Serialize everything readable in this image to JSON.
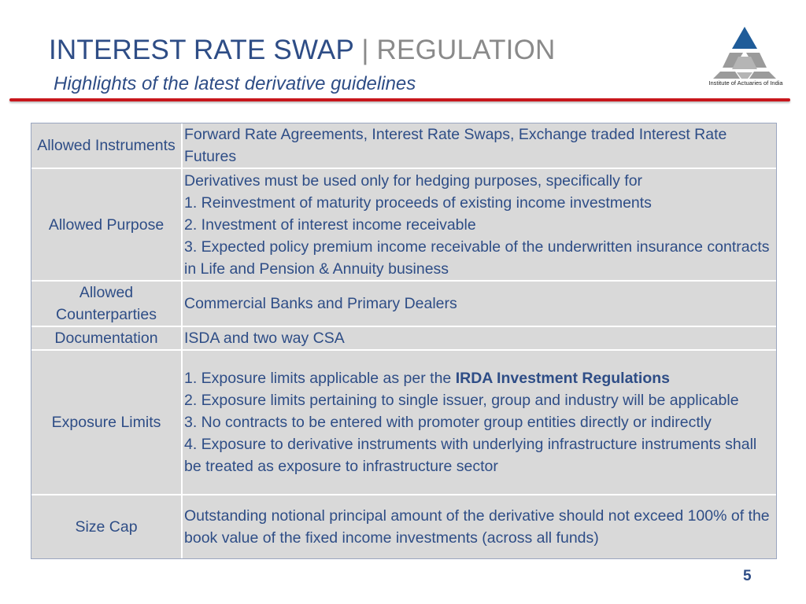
{
  "header": {
    "title_main": "INTEREST RATE SWAP",
    "title_sep": "|",
    "title_sub": "REGULATION",
    "subtitle": "Highlights of the latest derivative guidelines"
  },
  "logo": {
    "caption": "Institute of Actuaries of India",
    "icon": "iai-triangle-logo-icon"
  },
  "table": {
    "rows": [
      {
        "label": "Allowed Instruments",
        "lines": [
          "Forward Rate Agreements, Interest Rate Swaps, Exchange traded Interest Rate Futures"
        ]
      },
      {
        "label": "Allowed Purpose",
        "lines": [
          "Derivatives must be used only for hedging purposes, specifically for",
          "1. Reinvestment of maturity proceeds of existing income investments",
          "2. Investment of interest income receivable",
          "3. Expected policy premium income receivable of the underwritten insurance contracts in Life and Pension & Annuity business"
        ]
      },
      {
        "label": "Allowed Counterparties",
        "lines": [
          "Commercial Banks and Primary Dealers"
        ]
      },
      {
        "label": "Documentation",
        "lines": [
          "ISDA and two way CSA"
        ]
      },
      {
        "label": "Exposure Limits",
        "line1_prefix": "1. Exposure limits applicable as per the ",
        "line1_bold": "IRDA Investment Regulations",
        "lines": [
          "2. Exposure limits pertaining to single issuer, group and industry will be applicable",
          "3. No contracts to be entered with promoter group entities directly or indirectly",
          "4. Exposure to derivative instruments with underlying infrastructure instruments shall be treated as exposure to infrastructure sector"
        ]
      },
      {
        "label": "Size Cap",
        "lines": [
          "Outstanding notional principal amount of the derivative should not exceed 100% of the book value of the fixed income investments (across all funds)"
        ]
      }
    ]
  },
  "footer": {
    "page_number": "5"
  },
  "colors": {
    "title": "#2e4d86",
    "title_sub": "#8a8a8a",
    "rule": "#c8161c",
    "cell": "#d9d9d9",
    "logo_blue": "#1f5c99",
    "logo_gray": "#9b9b9b"
  }
}
